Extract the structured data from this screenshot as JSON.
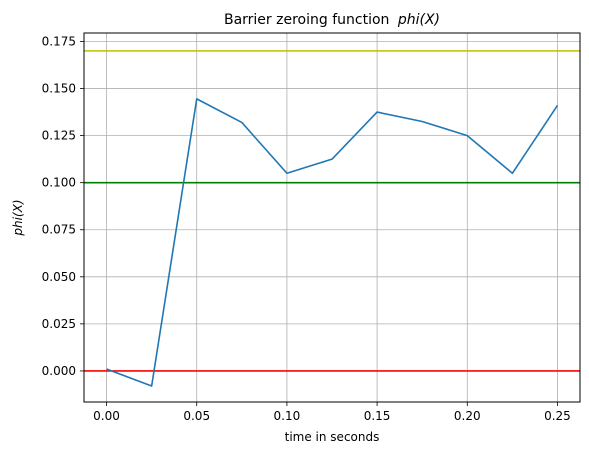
{
  "chart_data": {
    "type": "line",
    "title": "Barrier zeroing function",
    "title_math": "phi(X)",
    "xlabel": "time in seconds",
    "ylabel": "phi(X)",
    "xlim": [
      -0.0125,
      0.2625
    ],
    "ylim": [
      -0.0165,
      0.1795
    ],
    "grid": true,
    "x_ticks": [
      0.0,
      0.05,
      0.1,
      0.15,
      0.2,
      0.25
    ],
    "x_tick_labels": [
      "0.00",
      "0.05",
      "0.10",
      "0.15",
      "0.20",
      "0.25"
    ],
    "y_ticks": [
      0.0,
      0.025,
      0.05,
      0.075,
      0.1,
      0.125,
      0.15,
      0.175
    ],
    "y_tick_labels": [
      "0.000",
      "0.025",
      "0.050",
      "0.075",
      "0.100",
      "0.125",
      "0.150",
      "0.175"
    ],
    "series": [
      {
        "color": "#1f77b4",
        "x": [
          0.0,
          0.025,
          0.05,
          0.075,
          0.1,
          0.125,
          0.15,
          0.175,
          0.2,
          0.225,
          0.25
        ],
        "y": [
          0.001,
          -0.008,
          0.1445,
          0.132,
          0.105,
          0.1125,
          0.1375,
          0.1325,
          0.125,
          0.105,
          0.141
        ]
      }
    ],
    "hlines": [
      {
        "y": 0.17,
        "color": "#bfbf00"
      },
      {
        "y": 0.1,
        "color": "#008000"
      },
      {
        "y": 0.0,
        "color": "#ff0000"
      }
    ]
  }
}
